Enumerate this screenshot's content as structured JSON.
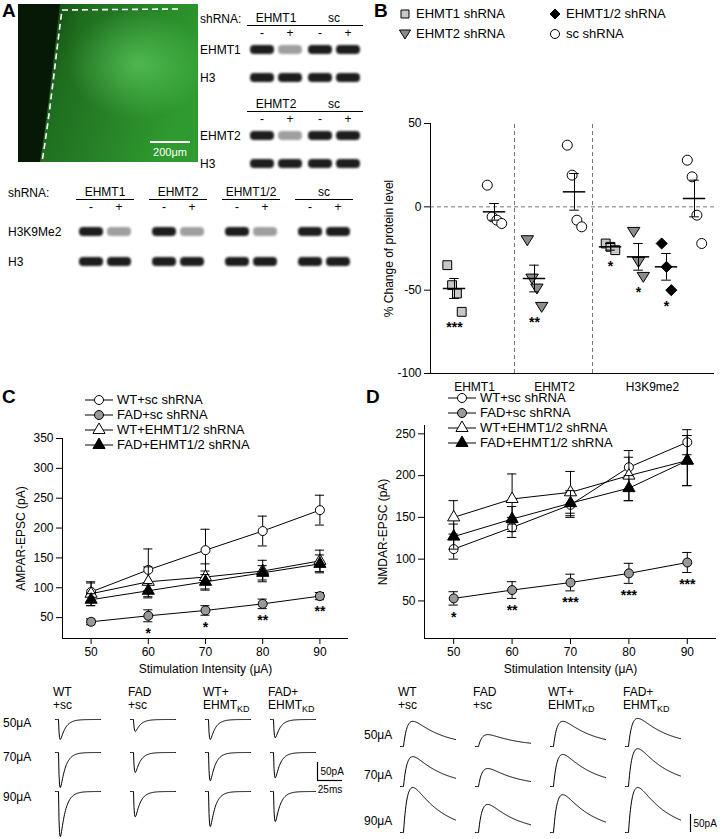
{
  "panel_a": {
    "label": "A",
    "image_scale_bar": "200μm",
    "blots": [
      {
        "header": "shRNA:",
        "groups": [
          "EHMT1",
          "sc"
        ],
        "lanes": [
          "-",
          "+"
        ],
        "rows": [
          "EHMT1",
          "H3"
        ]
      },
      {
        "groups": [
          "EHMT2",
          "sc"
        ],
        "lanes": [
          "-",
          "+"
        ],
        "rows": [
          "EHMT2",
          "H3"
        ]
      },
      {
        "header": "shRNA:",
        "groups": [
          "EHMT1",
          "EHMT2",
          "EHMT1/2",
          "sc"
        ],
        "lanes": [
          "-",
          "+"
        ],
        "rows": [
          "H3K9Me2",
          "H3"
        ]
      }
    ]
  },
  "chart_data": [
    {
      "panel": "B",
      "type": "scatter",
      "ylabel": "% Change of protein level",
      "xlim": [
        0.4,
        7.5
      ],
      "xticks": [
        {
          "value": 1.5,
          "label": "EHMT1"
        },
        {
          "value": 3.5,
          "label": "EHMT2"
        },
        {
          "value": 5.95,
          "label": "H3K9me2"
        }
      ],
      "ylim": [
        -100,
        50
      ],
      "yticks": [
        -100,
        -50,
        0,
        50
      ],
      "reference_lines": [
        {
          "y": 0,
          "line_style": "dashed"
        }
      ],
      "legend": "top",
      "series": [
        {
          "name": "EHMT1 shRNA",
          "color": "#c8c8c8",
          "marker": "square"
        },
        {
          "name": "EHMT2 shRNA",
          "color": "#8c8c8c",
          "marker": "triangle-down"
        },
        {
          "name": "EHMT1/2 shRNA",
          "color": "#000000",
          "marker": "diamond"
        },
        {
          "name": "sc shRNA",
          "color": "#ffffff",
          "marker": "circle"
        }
      ],
      "groups": [
        {
          "protein": "EHMT1",
          "series": "EHMT1 shRNA",
          "x": 1,
          "values": [
            -35,
            -47,
            -52,
            -63
          ],
          "mean": -49,
          "sem": 6,
          "annotation": "***"
        },
        {
          "protein": "EHMT1",
          "series": "sc shRNA",
          "x": 2,
          "values": [
            13,
            -6,
            -8,
            -10
          ],
          "mean": -3,
          "sem": 5
        },
        {
          "protein": "EHMT2",
          "series": "EHMT2 shRNA",
          "x": 3,
          "values": [
            -20,
            -43,
            -49,
            -60
          ],
          "mean": -43,
          "sem": 8,
          "annotation": "**"
        },
        {
          "protein": "EHMT2",
          "series": "sc shRNA",
          "x": 4,
          "values": [
            37,
            19,
            -8,
            -12
          ],
          "mean": 9,
          "sem": 11
        },
        {
          "protein": "H3K9me2",
          "series": "EHMT1 shRNA",
          "x": 4.9,
          "values": [
            -22,
            -24,
            -26
          ],
          "mean": -24,
          "sem": 2,
          "annotation": "*"
        },
        {
          "protein": "H3K9me2",
          "series": "EHMT2 shRNA",
          "x": 5.6,
          "values": [
            -15,
            -33,
            -42
          ],
          "mean": -30,
          "sem": 8,
          "annotation": "*"
        },
        {
          "protein": "H3K9me2",
          "series": "EHMT1/2 shRNA",
          "x": 6.3,
          "values": [
            -22,
            -36,
            -50
          ],
          "mean": -36,
          "sem": 8,
          "annotation": "*"
        },
        {
          "protein": "H3K9me2",
          "series": "sc shRNA",
          "x": 7.0,
          "values": [
            28,
            18,
            -5,
            -22
          ],
          "mean": 5,
          "sem": 11
        }
      ]
    },
    {
      "panel": "C",
      "type": "line",
      "xlabel": "Stimulation Intensity (μA)",
      "ylabel": "AMPAR-EPSC (pA)",
      "x": [
        50,
        60,
        70,
        80,
        90
      ],
      "xlim": [
        45,
        95
      ],
      "xticks": [
        50,
        60,
        70,
        80,
        90
      ],
      "ylim": [
        15,
        350
      ],
      "yticks": [
        50,
        100,
        150,
        200,
        250,
        300,
        350
      ],
      "legend": "top-left",
      "series": [
        {
          "name": "WT+sc shRNA",
          "color": "#ffffff",
          "marker": "circle",
          "values": [
            93,
            130,
            163,
            195,
            230
          ],
          "errors": [
            15,
            35,
            35,
            25,
            25
          ]
        },
        {
          "name": "FAD+sc shRNA",
          "color": "#999999",
          "marker": "circle",
          "values": [
            43,
            53,
            62,
            73,
            86
          ],
          "errors": [
            5,
            10,
            8,
            8,
            6
          ],
          "annotations": [
            null,
            "*",
            "*",
            "**",
            "**"
          ]
        },
        {
          "name": "WT+EHMT1/2 shRNA",
          "color": "#ffffff",
          "marker": "triangle",
          "values": [
            90,
            110,
            118,
            128,
            145
          ],
          "errors": [
            20,
            25,
            22,
            18,
            18
          ]
        },
        {
          "name": "FAD+EHMT1/2 shRNA",
          "color": "#000000",
          "marker": "triangle",
          "values": [
            80,
            95,
            110,
            125,
            140
          ],
          "errors": [
            10,
            12,
            12,
            12,
            15
          ]
        }
      ]
    },
    {
      "panel": "D",
      "type": "line",
      "xlabel": "Stimulation Intensity (μA)",
      "ylabel": "NMDAR-EPSC (pA)",
      "x": [
        50,
        60,
        70,
        80,
        90
      ],
      "xlim": [
        45,
        95
      ],
      "xticks": [
        50,
        60,
        70,
        80,
        90
      ],
      "ylim": [
        5,
        260
      ],
      "yticks": [
        50,
        100,
        150,
        200,
        250
      ],
      "legend": "top",
      "series": [
        {
          "name": "WT+sc shRNA",
          "color": "#ffffff",
          "marker": "circle",
          "values": [
            112,
            138,
            165,
            210,
            240
          ],
          "errors": [
            12,
            12,
            15,
            12,
            15
          ]
        },
        {
          "name": "FAD+sc shRNA",
          "color": "#999999",
          "marker": "circle",
          "values": [
            53,
            63,
            72,
            83,
            96
          ],
          "errors": [
            8,
            10,
            10,
            12,
            12
          ],
          "annotations": [
            "*",
            "**",
            "***",
            "***",
            "***"
          ]
        },
        {
          "name": "WT+EHMT1/2 shRNA",
          "color": "#ffffff",
          "marker": "triangle",
          "values": [
            150,
            172,
            180,
            200,
            218
          ],
          "errors": [
            20,
            30,
            25,
            30,
            30
          ]
        },
        {
          "name": "FAD+EHMT1/2 shRNA",
          "color": "#000000",
          "marker": "triangle",
          "values": [
            127,
            148,
            167,
            185,
            218
          ],
          "errors": [
            15,
            15,
            15,
            15,
            30
          ]
        }
      ]
    }
  ],
  "traces": [
    {
      "panel": "C",
      "columns": [
        {
          "lines": [
            "WT",
            "+sc"
          ]
        },
        {
          "lines": [
            "FAD",
            "+sc"
          ]
        },
        {
          "lines": [
            "WT+",
            "EHMT"
          ],
          "subscript": "KD"
        },
        {
          "lines": [
            "FAD+",
            "EHMT"
          ],
          "subscript": "KD"
        }
      ],
      "rows": [
        "50μA",
        "70μA",
        "90μA"
      ],
      "amplitudes": [
        [
          -55,
          -33,
          -55,
          -50
        ],
        [
          -97,
          -55,
          -78,
          -70
        ],
        [
          -125,
          -70,
          -97,
          -83
        ]
      ],
      "scale_bars": [
        {
          "value": 50,
          "label": "50pA",
          "axis": "y"
        },
        {
          "value": 25,
          "label": "25ms",
          "axis": "x"
        }
      ]
    },
    {
      "panel": "D",
      "columns": [
        {
          "lines": [
            "WT",
            "+sc"
          ]
        },
        {
          "lines": [
            "FAD",
            "+sc"
          ]
        },
        {
          "lines": [
            "WT+",
            "EHMT"
          ],
          "subscript": "KD"
        },
        {
          "lines": [
            "FAD+",
            "EHMT"
          ],
          "subscript": "KD"
        }
      ],
      "rows": [
        "50μA",
        "70μA",
        "90μA"
      ],
      "amplitudes": [
        [
          70,
          33,
          70,
          78
        ],
        [
          83,
          50,
          89,
          105
        ],
        [
          125,
          78,
          105,
          125
        ]
      ],
      "scale_bars": [
        {
          "value": 50,
          "label": "50pA",
          "axis": "y"
        }
      ]
    }
  ]
}
